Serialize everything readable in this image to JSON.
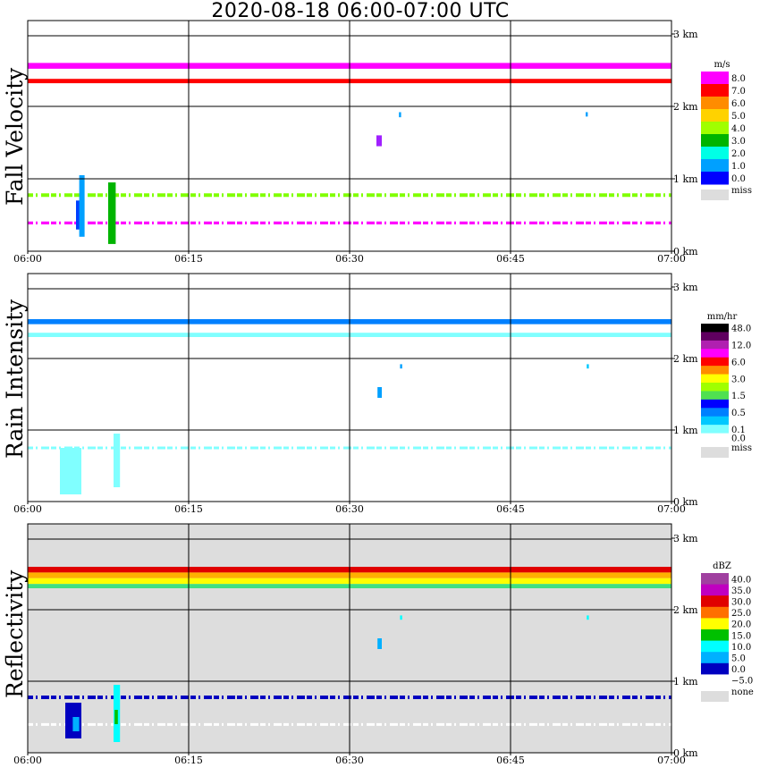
{
  "title": "2020-08-18   06:00-07:00 UTC",
  "x_ticks": [
    "06:00",
    "06:15",
    "06:30",
    "06:45",
    "07:00"
  ],
  "y_ticks": [
    "0 km",
    "1 km",
    "2 km",
    "3 km"
  ],
  "chart_data": [
    {
      "type": "heatmap",
      "title": "Fall Velocity",
      "background": "#ffffff",
      "xlim_utc": [
        "06:00",
        "07:00"
      ],
      "ylim_km": [
        0,
        3.1
      ],
      "legend_unit": "m/s",
      "legend": [
        {
          "label": "8.0",
          "color": "#ff00ff"
        },
        {
          "label": "7.0",
          "color": "#ff0000"
        },
        {
          "label": "6.0",
          "color": "#ff8c00"
        },
        {
          "label": "5.0",
          "color": "#ffd200"
        },
        {
          "label": "4.0",
          "color": "#a0ff00"
        },
        {
          "label": "3.0",
          "color": "#00b400"
        },
        {
          "label": "2.0",
          "color": "#00ffe6"
        },
        {
          "label": "1.0",
          "color": "#00a0ff"
        },
        {
          "label": "0.0",
          "color": "#0000ff"
        }
      ],
      "legend_miss": {
        "label": "miss",
        "color": "#dddddd"
      },
      "bands": [
        {
          "y_km": [
            2.52,
            2.6
          ],
          "color": "#ff00ff"
        },
        {
          "y_km": [
            2.32,
            2.38
          ],
          "color": "#ff0000"
        },
        {
          "y_km": [
            0.75,
            0.8
          ],
          "color": "#80ff00",
          "dashed": true
        },
        {
          "y_km": [
            0.37,
            0.41
          ],
          "color": "#ff00ff",
          "dashed": true
        }
      ],
      "patches": [
        {
          "t_min": [
            4.5,
            5.1
          ],
          "y_km": [
            0.3,
            0.7
          ],
          "color": "#0040ff"
        },
        {
          "t_min": [
            4.8,
            5.3
          ],
          "y_km": [
            0.2,
            1.05
          ],
          "color": "#00a0ff"
        },
        {
          "t_min": [
            7.5,
            8.2
          ],
          "y_km": [
            0.1,
            0.95
          ],
          "color": "#00b400"
        },
        {
          "t_min": [
            32.5,
            33.0
          ],
          "y_km": [
            1.45,
            1.6
          ],
          "color": "#a020ff"
        },
        {
          "t_min": [
            34.6,
            34.8
          ],
          "y_km": [
            1.85,
            1.92
          ],
          "color": "#00a0ff"
        },
        {
          "t_min": [
            52.0,
            52.2
          ],
          "y_km": [
            1.86,
            1.92
          ],
          "color": "#00a0ff"
        }
      ]
    },
    {
      "type": "heatmap",
      "title": "Rain Intensity",
      "background": "#ffffff",
      "xlim_utc": [
        "06:00",
        "07:00"
      ],
      "ylim_km": [
        0,
        3.1
      ],
      "legend_unit": "mm/hr",
      "legend": [
        {
          "label": "48.0",
          "color": "#000000"
        },
        {
          "label": "",
          "color": "#600060"
        },
        {
          "label": "12.0",
          "color": "#b020b0"
        },
        {
          "label": "",
          "color": "#ff00ff"
        },
        {
          "label": "6.0",
          "color": "#ff0000"
        },
        {
          "label": "",
          "color": "#ff8c00"
        },
        {
          "label": "3.0",
          "color": "#ffff00"
        },
        {
          "label": "",
          "color": "#a0ff00"
        },
        {
          "label": "1.5",
          "color": "#50e050"
        },
        {
          "label": "",
          "color": "#0000ff"
        },
        {
          "label": "0.5",
          "color": "#0080ff"
        },
        {
          "label": "",
          "color": "#00c8ff"
        },
        {
          "label": "0.1",
          "color": "#80ffff"
        },
        {
          "label": "0.0",
          "color": "#ffffff"
        }
      ],
      "legend_miss": {
        "label": "miss",
        "color": "#dddddd"
      },
      "bands": [
        {
          "y_km": [
            2.48,
            2.55
          ],
          "color": "#0080ff"
        },
        {
          "y_km": [
            2.3,
            2.36
          ],
          "color": "#80ffff"
        },
        {
          "y_km": [
            0.74,
            0.76
          ],
          "color": "#80ffff",
          "dashed": true
        }
      ],
      "patches": [
        {
          "t_min": [
            3.0,
            5.0
          ],
          "y_km": [
            0.1,
            0.75
          ],
          "color": "#80ffff"
        },
        {
          "t_min": [
            8.0,
            8.6
          ],
          "y_km": [
            0.2,
            0.95
          ],
          "color": "#80ffff"
        },
        {
          "t_min": [
            32.6,
            33.0
          ],
          "y_km": [
            1.45,
            1.6
          ],
          "color": "#00a0ff"
        },
        {
          "t_min": [
            34.7,
            34.9
          ],
          "y_km": [
            1.86,
            1.92
          ],
          "color": "#00a0ff"
        },
        {
          "t_min": [
            52.1,
            52.3
          ],
          "y_km": [
            1.86,
            1.92
          ],
          "color": "#00c8ff"
        }
      ]
    },
    {
      "type": "heatmap",
      "title": "Reflectivity",
      "background": "#dddddd",
      "xlim_utc": [
        "06:00",
        "07:00"
      ],
      "ylim_km": [
        0,
        3.1
      ],
      "legend_unit": "dBZ",
      "legend": [
        {
          "label": "40.0",
          "color": "#a040a0"
        },
        {
          "label": "35.0",
          "color": "#c000c0"
        },
        {
          "label": "30.0",
          "color": "#e00000"
        },
        {
          "label": "25.0",
          "color": "#ff7000"
        },
        {
          "label": "20.0",
          "color": "#ffff00"
        },
        {
          "label": "15.0",
          "color": "#00c000"
        },
        {
          "label": "10.0",
          "color": "#00ffff"
        },
        {
          "label": "5.0",
          "color": "#00b0ff"
        },
        {
          "label": "0.0",
          "color": "#0000c0"
        },
        {
          "label": "−5.0",
          "color": "#ffffff"
        }
      ],
      "legend_miss": {
        "label": "none",
        "color": "#dddddd"
      },
      "bands": [
        {
          "y_km": [
            2.52,
            2.6
          ],
          "color": "#e00000"
        },
        {
          "y_km": [
            2.44,
            2.52
          ],
          "color": "#ffb000"
        },
        {
          "y_km": [
            2.36,
            2.44
          ],
          "color": "#ffff00"
        },
        {
          "y_km": [
            2.3,
            2.36
          ],
          "color": "#40e080"
        },
        {
          "y_km": [
            0.75,
            0.8
          ],
          "color": "#0000c0",
          "dashed": true
        },
        {
          "y_km": [
            0.38,
            0.41
          ],
          "color": "#ffffff",
          "dashed": true
        }
      ],
      "patches": [
        {
          "t_min": [
            3.5,
            5.0
          ],
          "y_km": [
            0.2,
            0.7
          ],
          "color": "#0000c0"
        },
        {
          "t_min": [
            4.2,
            4.8
          ],
          "y_km": [
            0.3,
            0.5
          ],
          "color": "#00b0ff"
        },
        {
          "t_min": [
            8.0,
            8.6
          ],
          "y_km": [
            0.15,
            0.95
          ],
          "color": "#00ffff"
        },
        {
          "t_min": [
            8.1,
            8.4
          ],
          "y_km": [
            0.4,
            0.6
          ],
          "color": "#00c000"
        },
        {
          "t_min": [
            32.6,
            33.0
          ],
          "y_km": [
            1.45,
            1.6
          ],
          "color": "#00b0ff"
        },
        {
          "t_min": [
            34.7,
            34.9
          ],
          "y_km": [
            1.86,
            1.92
          ],
          "color": "#00ffff"
        },
        {
          "t_min": [
            52.1,
            52.3
          ],
          "y_km": [
            1.86,
            1.92
          ],
          "color": "#00ffff"
        }
      ]
    }
  ]
}
